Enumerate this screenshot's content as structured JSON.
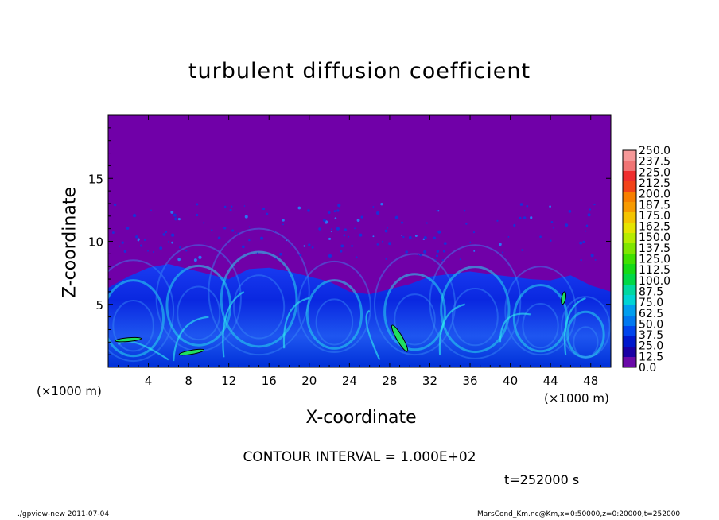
{
  "chart_data": {
    "type": "heatmap",
    "title": "turbulent diffusion coefficient",
    "xlabel": "X-coordinate",
    "ylabel": "Z-coordinate",
    "x_unit_left": "(×1000 m)",
    "x_unit_right": "(×1000 m)",
    "xlim": [
      0,
      50
    ],
    "ylim": [
      0,
      20
    ],
    "x_ticks": [
      4,
      8,
      12,
      16,
      20,
      24,
      28,
      32,
      36,
      40,
      44,
      48
    ],
    "y_ticks": [
      5,
      10,
      15
    ],
    "grid": false,
    "colorbar": {
      "levels": [
        "250.0",
        "237.5",
        "225.0",
        "212.5",
        "200.0",
        "187.5",
        "175.0",
        "162.5",
        "150.0",
        "137.5",
        "125.0",
        "112.5",
        "100.0",
        "87.5",
        "75.0",
        "62.5",
        "50.0",
        "37.5",
        "25.0",
        "12.5",
        "0.0"
      ],
      "colors": [
        "#f59898",
        "#f07474",
        "#ef2e2e",
        "#f2431a",
        "#f77f00",
        "#f79a00",
        "#f4c400",
        "#e5e400",
        "#b6ec00",
        "#7fe600",
        "#40e000",
        "#15da15",
        "#00d846",
        "#00d8a0",
        "#00d4d4",
        "#009eee",
        "#0078f0",
        "#0044ec",
        "#0018cc",
        "#1a00a4",
        "#6a0aa8"
      ]
    },
    "background_color": "#7000a8",
    "turbulent_layer_top_km": [
      6.3,
      7.2,
      7.9,
      8.2,
      7.8,
      7.4,
      7.0,
      7.8,
      7.9,
      7.6,
      7.2,
      6.8,
      6.0,
      5.8,
      6.2,
      6.6,
      7.2,
      7.4,
      7.6,
      7.4,
      7.2,
      7.0,
      6.9,
      7.3,
      6.5,
      6.0
    ],
    "contour_interval": "CONTOUR INTERVAL = 1.000E+02",
    "time_label": "t=252000 s",
    "footer_left": "./gpview-new  2011-07-04",
    "footer_right": "MarsCond_Km.nc@Km,x=0:50000,z=0:20000,t=252000"
  }
}
